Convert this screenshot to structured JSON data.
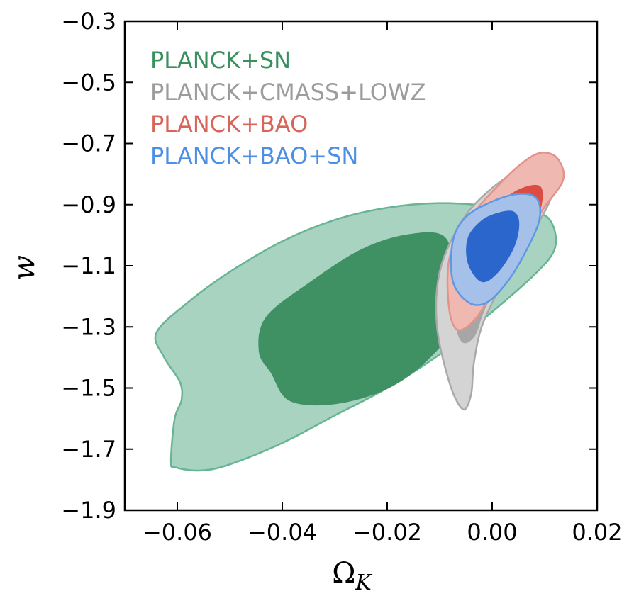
{
  "chart_data": {
    "type": "contour",
    "xlabel": "Ω",
    "xlabel_subscript": "K",
    "ylabel": "w",
    "xlim": [
      -0.07,
      0.02
    ],
    "ylim": [
      -1.9,
      -0.3
    ],
    "xticks": [
      -0.06,
      -0.04,
      -0.02,
      0.0,
      0.02
    ],
    "xtick_labels": [
      "−0.06",
      "−0.04",
      "−0.02",
      "0.00",
      "0.02"
    ],
    "yticks": [
      -0.3,
      -0.5,
      -0.7,
      -0.9,
      -1.1,
      -1.3,
      -1.5,
      -1.7,
      -1.9
    ],
    "ytick_labels": [
      "−0.3",
      "−0.5",
      "−0.7",
      "−0.9",
      "−1.1",
      "−1.3",
      "−1.5",
      "−1.7",
      "−1.9"
    ],
    "grid": false,
    "legend_position": "top-left",
    "series": [
      {
        "name": "PLANCK+SN",
        "color": "#3a8f5f",
        "contours": [
          {
            "level": "outer",
            "fill": "#a8d3c0",
            "stroke": "#67b595",
            "points": [
              [
                -0.0612,
                -1.74
              ],
              [
                -0.0603,
                -1.76
              ],
              [
                -0.0555,
                -1.77
              ],
              [
                -0.05,
                -1.75
              ],
              [
                -0.04,
                -1.68
              ],
              [
                -0.03,
                -1.59
              ],
              [
                -0.02,
                -1.5
              ],
              [
                -0.01,
                -1.39
              ],
              [
                -0.002,
                -1.28
              ],
              [
                0.008,
                -1.13
              ],
              [
                0.012,
                -1.04
              ],
              [
                0.011,
                -0.95
              ],
              [
                0.007,
                -0.92
              ],
              [
                0.0,
                -0.905
              ],
              [
                -0.01,
                -0.895
              ],
              [
                -0.02,
                -0.91
              ],
              [
                -0.03,
                -0.95
              ],
              [
                -0.04,
                -1.02
              ],
              [
                -0.05,
                -1.12
              ],
              [
                -0.058,
                -1.22
              ],
              [
                -0.064,
                -1.32
              ],
              [
                -0.0625,
                -1.4
              ],
              [
                -0.0595,
                -1.48
              ],
              [
                -0.0592,
                -1.54
              ],
              [
                -0.0605,
                -1.6
              ]
            ]
          },
          {
            "level": "inner",
            "fill": "#3f9164",
            "stroke": "#3f9164",
            "points": [
              [
                -0.042,
                -1.45
              ],
              [
                -0.0385,
                -1.54
              ],
              [
                -0.03,
                -1.55
              ],
              [
                -0.02,
                -1.5
              ],
              [
                -0.012,
                -1.4
              ],
              [
                -0.0065,
                -1.27
              ],
              [
                -0.0075,
                -1.15
              ],
              [
                -0.009,
                -1.01
              ],
              [
                -0.016,
                -1.0
              ],
              [
                -0.025,
                -1.05
              ],
              [
                -0.035,
                -1.16
              ],
              [
                -0.043,
                -1.27
              ],
              [
                -0.0443,
                -1.38
              ]
            ]
          }
        ]
      },
      {
        "name": "PLANCK+CMASS+LOWZ",
        "color": "#9c9c9c",
        "contours": [
          {
            "level": "outer",
            "fill": "#d4d4d4",
            "stroke": "#a9a9a9",
            "points": [
              [
                -0.0055,
                -1.57
              ],
              [
                -0.008,
                -1.49
              ],
              [
                -0.0105,
                -1.3
              ],
              [
                -0.01,
                -1.12
              ],
              [
                -0.006,
                -0.96
              ],
              [
                -0.001,
                -0.86
              ],
              [
                0.005,
                -0.79
              ],
              [
                0.0095,
                -0.79
              ],
              [
                0.0115,
                -0.86
              ],
              [
                0.0075,
                -1.0
              ],
              [
                0.004,
                -1.1
              ],
              [
                0.0012,
                -1.18
              ],
              [
                -0.002,
                -1.3
              ],
              [
                -0.0035,
                -1.42
              ],
              [
                -0.004,
                -1.52
              ]
            ]
          },
          {
            "level": "inner",
            "fill": "#a6a6a6",
            "stroke": "#a6a6a6",
            "points": [
              [
                -0.006,
                -1.34
              ],
              [
                -0.0078,
                -1.2
              ],
              [
                -0.0075,
                -1.06
              ],
              [
                -0.003,
                -0.95
              ],
              [
                0.003,
                -0.87
              ],
              [
                0.0085,
                -0.84
              ],
              [
                0.0065,
                -0.98
              ],
              [
                0.0025,
                -1.11
              ],
              [
                -0.0015,
                -1.24
              ],
              [
                -0.0035,
                -1.33
              ]
            ]
          }
        ]
      },
      {
        "name": "PLANCK+BAO",
        "color": "#d9655a",
        "contours": [
          {
            "level": "outer",
            "fill": "#efb8b0",
            "stroke": "#e39389",
            "points": [
              [
                -0.0065,
                -1.31
              ],
              [
                -0.0082,
                -1.24
              ],
              [
                -0.0082,
                -1.08
              ],
              [
                -0.005,
                -0.96
              ],
              [
                0.001,
                -0.84
              ],
              [
                0.006,
                -0.76
              ],
              [
                0.0095,
                -0.73
              ],
              [
                0.0125,
                -0.75
              ],
              [
                0.0135,
                -0.82
              ],
              [
                0.0095,
                -0.92
              ],
              [
                0.005,
                -1.05
              ],
              [
                0.0005,
                -1.17
              ],
              [
                -0.003,
                -1.27
              ]
            ]
          },
          {
            "level": "inner",
            "fill": "#db4d43",
            "stroke": "#db4d43",
            "points": [
              [
                -0.0055,
                -1.18
              ],
              [
                -0.0065,
                -1.05
              ],
              [
                -0.0035,
                -0.96
              ],
              [
                0.001,
                -0.9
              ],
              [
                0.0055,
                -0.85
              ],
              [
                0.0092,
                -0.845
              ],
              [
                0.0088,
                -0.93
              ],
              [
                0.0055,
                -1.02
              ],
              [
                0.001,
                -1.12
              ],
              [
                -0.0025,
                -1.18
              ]
            ]
          }
        ]
      },
      {
        "name": "PLANCK+BAO+SN",
        "color": "#4c8fe5",
        "contours": [
          {
            "level": "outer",
            "fill": "#a5c1ea",
            "stroke": "#5e98e4",
            "points": [
              [
                -0.0045,
                -1.22
              ],
              [
                -0.0075,
                -1.15
              ],
              [
                -0.0075,
                -1.02
              ],
              [
                -0.005,
                -0.94
              ],
              [
                0.0,
                -0.89
              ],
              [
                0.005,
                -0.865
              ],
              [
                0.0085,
                -0.88
              ],
              [
                0.009,
                -0.95
              ],
              [
                0.0065,
                -1.05
              ],
              [
                0.003,
                -1.15
              ],
              [
                -0.001,
                -1.22
              ]
            ]
          },
          {
            "level": "inner",
            "fill": "#2a66cc",
            "stroke": "#2a66cc",
            "points": [
              [
                -0.002,
                -1.15
              ],
              [
                -0.0045,
                -1.09
              ],
              [
                -0.0045,
                -1.01
              ],
              [
                -0.002,
                -0.955
              ],
              [
                0.001,
                -0.93
              ],
              [
                0.004,
                -0.925
              ],
              [
                0.005,
                -0.965
              ],
              [
                0.004,
                -1.04
              ],
              [
                0.001,
                -1.12
              ]
            ]
          }
        ]
      }
    ]
  }
}
